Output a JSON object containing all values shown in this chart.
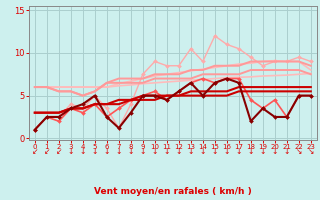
{
  "xlabel": "Vent moyen/en rafales ( km/h )",
  "bg_color": "#cdf0ee",
  "grid_color": "#aacece",
  "xlim": [
    -0.5,
    23.5
  ],
  "ylim": [
    -0.2,
    15.5
  ],
  "xticks": [
    0,
    1,
    2,
    3,
    4,
    5,
    6,
    7,
    8,
    9,
    10,
    11,
    12,
    13,
    14,
    15,
    16,
    17,
    18,
    19,
    20,
    21,
    22,
    23
  ],
  "yticks": [
    0,
    5,
    10,
    15
  ],
  "tick_color": "#dd0000",
  "label_color": "#dd0000",
  "lines": [
    {
      "y": [
        6.0,
        6.0,
        6.0,
        6.0,
        6.0,
        6.0,
        6.0,
        6.15,
        6.25,
        6.4,
        6.5,
        6.6,
        6.7,
        6.8,
        6.9,
        7.0,
        7.1,
        7.15,
        7.2,
        7.3,
        7.35,
        7.4,
        7.5,
        7.6
      ],
      "color": "#ffbbbb",
      "lw": 1.2,
      "marker": null
    },
    {
      "y": [
        6.0,
        6.0,
        6.0,
        6.0,
        6.0,
        6.0,
        6.0,
        6.4,
        6.7,
        7.0,
        7.3,
        7.5,
        7.7,
        7.9,
        8.1,
        8.3,
        8.5,
        8.7,
        8.8,
        9.0,
        9.1,
        9.0,
        9.0,
        8.0
      ],
      "color": "#ffbbbb",
      "lw": 1.2,
      "marker": null
    },
    {
      "y": [
        1.0,
        2.5,
        2.5,
        4.0,
        3.5,
        5.0,
        3.5,
        1.2,
        4.0,
        7.5,
        9.0,
        8.5,
        8.5,
        10.5,
        9.0,
        12.0,
        11.0,
        10.5,
        9.5,
        8.5,
        9.0,
        9.0,
        9.5,
        9.0
      ],
      "color": "#ffaaaa",
      "lw": 1.0,
      "marker": "D",
      "ms": 2.0
    },
    {
      "y": [
        6.0,
        6.0,
        5.5,
        5.5,
        5.0,
        5.5,
        6.5,
        6.5,
        6.5,
        6.5,
        7.0,
        7.0,
        7.0,
        7.0,
        7.5,
        7.5,
        7.5,
        7.5,
        8.0,
        8.0,
        8.0,
        8.0,
        8.0,
        7.5
      ],
      "color": "#ff9999",
      "lw": 1.4,
      "marker": null
    },
    {
      "y": [
        6.0,
        6.0,
        5.5,
        5.5,
        5.0,
        5.5,
        6.5,
        7.0,
        7.0,
        7.0,
        7.5,
        7.5,
        7.5,
        8.0,
        8.0,
        8.5,
        8.5,
        8.5,
        9.0,
        9.0,
        9.0,
        9.0,
        9.0,
        8.5
      ],
      "color": "#ff9999",
      "lw": 1.4,
      "marker": null
    },
    {
      "y": [
        1.0,
        2.5,
        2.0,
        3.5,
        3.0,
        4.0,
        2.5,
        3.5,
        4.5,
        5.0,
        5.5,
        4.5,
        5.5,
        6.5,
        7.0,
        6.5,
        7.0,
        7.0,
        4.5,
        3.5,
        4.5,
        2.5,
        5.0,
        5.0
      ],
      "color": "#ff5555",
      "lw": 1.2,
      "marker": "D",
      "ms": 2.0
    },
    {
      "y": [
        3.0,
        3.0,
        3.0,
        3.5,
        3.5,
        4.0,
        4.0,
        4.0,
        4.5,
        4.5,
        4.5,
        5.0,
        5.0,
        5.0,
        5.0,
        5.0,
        5.0,
        5.5,
        5.5,
        5.5,
        5.5,
        5.5,
        5.5,
        5.5
      ],
      "color": "#cc0000",
      "lw": 1.5,
      "marker": null
    },
    {
      "y": [
        3.0,
        3.0,
        3.0,
        3.5,
        3.5,
        4.0,
        4.0,
        4.5,
        4.5,
        5.0,
        5.0,
        5.0,
        5.0,
        5.5,
        5.5,
        5.5,
        5.5,
        6.0,
        6.0,
        6.0,
        6.0,
        6.0,
        6.0,
        6.0
      ],
      "color": "#cc0000",
      "lw": 1.5,
      "marker": null
    },
    {
      "y": [
        1.0,
        2.5,
        2.5,
        3.5,
        4.0,
        5.0,
        2.5,
        1.2,
        3.0,
        5.0,
        5.0,
        4.5,
        5.5,
        6.5,
        5.0,
        6.5,
        7.0,
        6.5,
        2.0,
        3.5,
        2.5,
        2.5,
        5.0,
        5.0
      ],
      "color": "#880000",
      "lw": 1.5,
      "marker": "D",
      "ms": 2.0
    }
  ],
  "arrow_angles": [
    225,
    225,
    225,
    270,
    270,
    270,
    270,
    270,
    270,
    270,
    270,
    270,
    270,
    270,
    270,
    270,
    270,
    270,
    270,
    270,
    270,
    270,
    315,
    315
  ],
  "spine_color": "#888888"
}
